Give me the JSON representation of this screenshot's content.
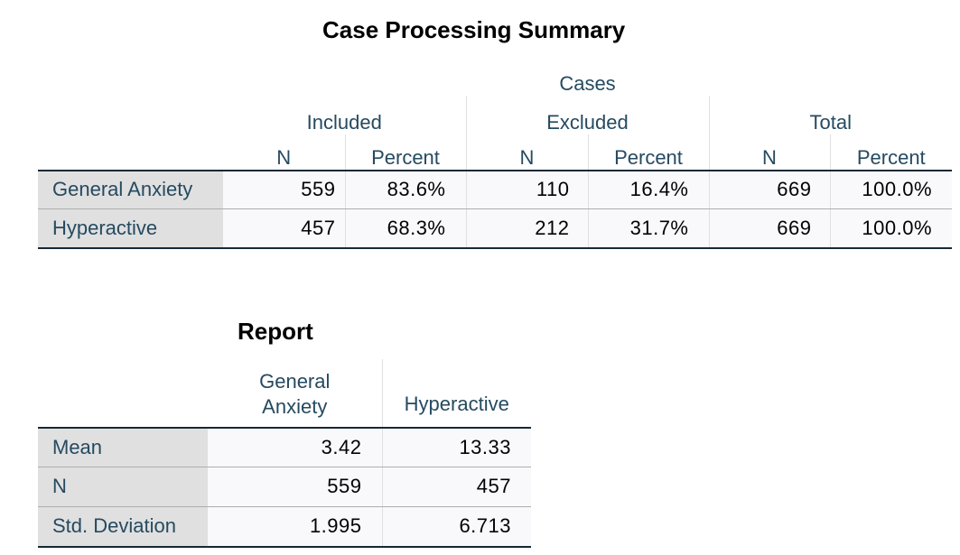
{
  "case_processing_summary": {
    "title": "Case Processing Summary",
    "cases_label": "Cases",
    "groups": [
      "Included",
      "Excluded",
      "Total"
    ],
    "subheaders": [
      "N",
      "Percent",
      "N",
      "Percent",
      "N",
      "Percent"
    ],
    "rows": [
      {
        "label": "General Anxiety",
        "values": [
          "559",
          "83.6%",
          "110",
          "16.4%",
          "669",
          "100.0%"
        ]
      },
      {
        "label": "Hyperactive",
        "values": [
          "457",
          "68.3%",
          "212",
          "31.7%",
          "669",
          "100.0%"
        ]
      }
    ]
  },
  "report": {
    "title": "Report",
    "columns": [
      "General\nAnxiety",
      "Hyperactive"
    ],
    "rows": [
      {
        "label": "Mean",
        "values": [
          "3.42",
          "13.33"
        ]
      },
      {
        "label": "N",
        "values": [
          "559",
          "457"
        ]
      },
      {
        "label": "Std. Deviation",
        "values": [
          "1.995",
          "6.713"
        ]
      }
    ]
  },
  "colors": {
    "header_text": "#264a60",
    "row_label_bg": "#e0e0e0",
    "cell_bg": "#f9f9fb",
    "border_dark": "#152935"
  }
}
